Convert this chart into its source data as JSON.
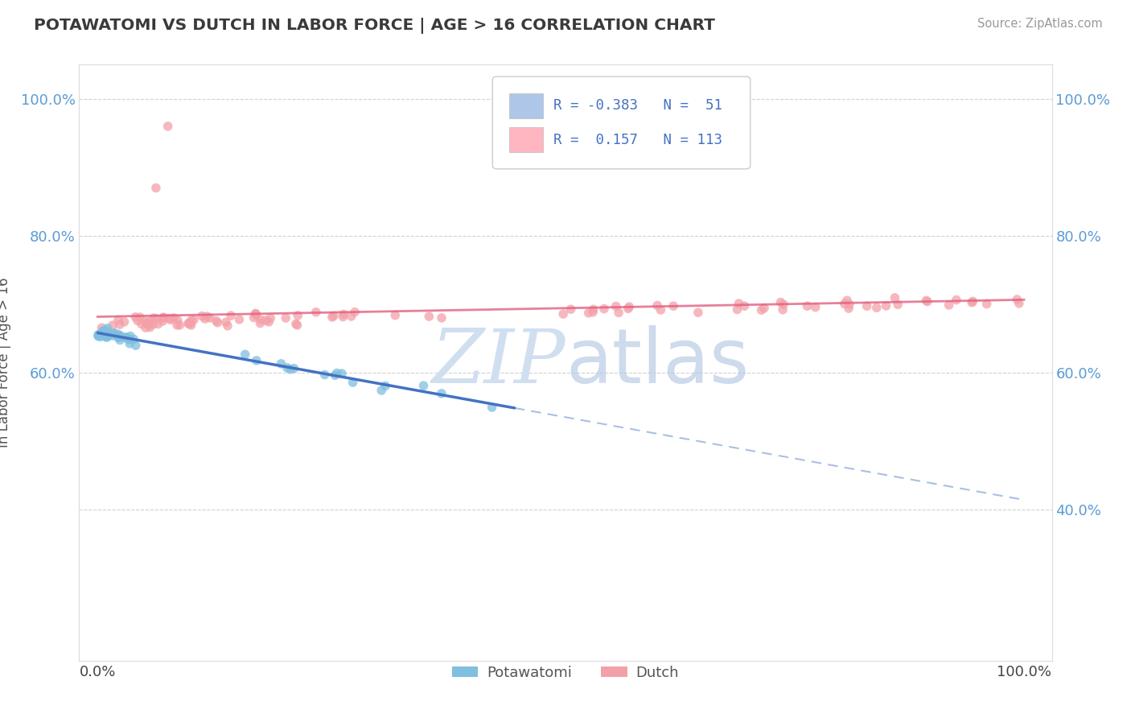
{
  "title": "POTAWATOMI VS DUTCH IN LABOR FORCE | AGE > 16 CORRELATION CHART",
  "source": "Source: ZipAtlas.com",
  "ylabel": "In Labor Force | Age > 16",
  "potawatomi_color": "#7fbfdf",
  "dutch_color": "#f4a0a8",
  "potawatomi_line_color": "#4472c4",
  "dutch_line_color": "#e06080",
  "R_potawatomi": -0.383,
  "N_potawatomi": 51,
  "R_dutch": 0.157,
  "N_dutch": 113,
  "legend_box_color_potawatomi": "#aec7e8",
  "legend_box_color_dutch": "#ffb6c1",
  "grid_color": "#cccccc",
  "watermark_color": "#d0dff0",
  "ylim_low": 0.18,
  "ylim_high": 1.05,
  "yticks": [
    0.4,
    0.6,
    0.8,
    1.0
  ],
  "yticks_left": [
    0.6,
    0.8,
    1.0
  ],
  "yticks_right": [
    0.4,
    0.6,
    0.8,
    1.0
  ]
}
